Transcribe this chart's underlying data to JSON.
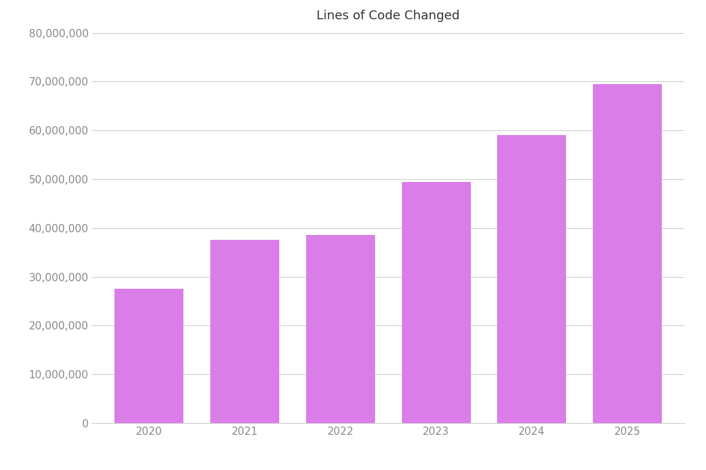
{
  "title": "Lines of Code Changed",
  "categories": [
    "2020",
    "2021",
    "2022",
    "2023",
    "2024",
    "2025"
  ],
  "values": [
    27500000,
    37500000,
    38500000,
    49500000,
    59000000,
    69500000
  ],
  "bar_color": "#da7de8",
  "background_color": "#ffffff",
  "ylim": [
    0,
    80000000
  ],
  "yticks": [
    0,
    10000000,
    20000000,
    30000000,
    40000000,
    50000000,
    60000000,
    70000000,
    80000000
  ],
  "title_fontsize": 13,
  "tick_fontsize": 11,
  "grid_color": "#d0d0d0",
  "bar_width": 0.72
}
